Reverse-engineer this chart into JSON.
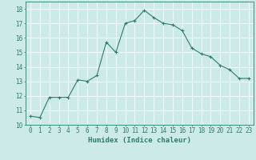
{
  "x": [
    0,
    1,
    2,
    3,
    4,
    5,
    6,
    7,
    8,
    9,
    10,
    11,
    12,
    13,
    14,
    15,
    16,
    17,
    18,
    19,
    20,
    21,
    22,
    23
  ],
  "y": [
    10.6,
    10.5,
    11.9,
    11.9,
    11.9,
    13.1,
    13.0,
    13.4,
    15.7,
    15.0,
    17.0,
    17.2,
    17.9,
    17.4,
    17.0,
    16.9,
    16.5,
    15.3,
    14.9,
    14.7,
    14.1,
    13.8,
    13.2,
    13.2
  ],
  "xlabel": "Humidex (Indice chaleur)",
  "xlim": [
    -0.5,
    23.5
  ],
  "ylim": [
    10,
    18.5
  ],
  "yticks": [
    10,
    11,
    12,
    13,
    14,
    15,
    16,
    17,
    18
  ],
  "xticks": [
    0,
    1,
    2,
    3,
    4,
    5,
    6,
    7,
    8,
    9,
    10,
    11,
    12,
    13,
    14,
    15,
    16,
    17,
    18,
    19,
    20,
    21,
    22,
    23
  ],
  "line_color": "#2e7d6e",
  "bg_color": "#cceae7",
  "grid_color": "#ffffff",
  "tick_fontsize": 5.5,
  "label_fontsize": 6.5
}
